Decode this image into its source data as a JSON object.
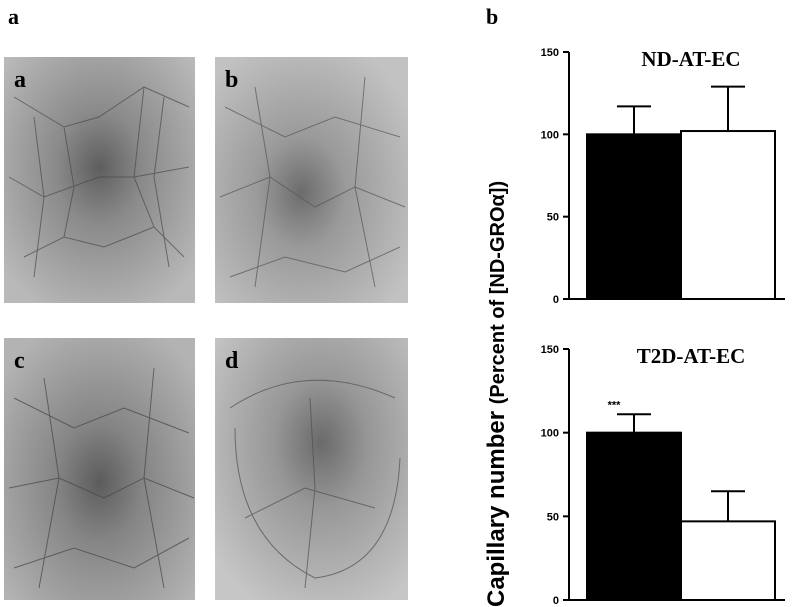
{
  "panel_a_label": "a",
  "panel_b_label": "b",
  "micrographs": [
    {
      "label": "a"
    },
    {
      "label": "b"
    },
    {
      "label": "c"
    },
    {
      "label": "d"
    }
  ],
  "ylabel_main": "Capillary number ",
  "ylabel_paren": "(Percent of [ND-GROα])",
  "chart_data": [
    {
      "type": "bar",
      "title": "ND-AT-EC",
      "categories": [
        "",
        ""
      ],
      "values": [
        100,
        102
      ],
      "errors": [
        17,
        27
      ],
      "colors": [
        "#000000",
        "#ffffff"
      ],
      "ylim": [
        0,
        150
      ],
      "yticks": [
        0,
        50,
        100,
        150
      ],
      "annotations": [],
      "xlabel": "",
      "ylabel": "Capillary number (Percent of [ND-GROα])"
    },
    {
      "type": "bar",
      "title": "T2D-AT-EC",
      "categories": [
        "",
        ""
      ],
      "values": [
        100,
        47
      ],
      "errors": [
        11,
        18
      ],
      "colors": [
        "#000000",
        "#ffffff"
      ],
      "ylim": [
        0,
        150
      ],
      "yticks": [
        0,
        50,
        100,
        150
      ],
      "annotations": [
        "***",
        ""
      ],
      "xlabel": "",
      "ylabel": "Capillary number (Percent of [ND-GROα])"
    }
  ]
}
